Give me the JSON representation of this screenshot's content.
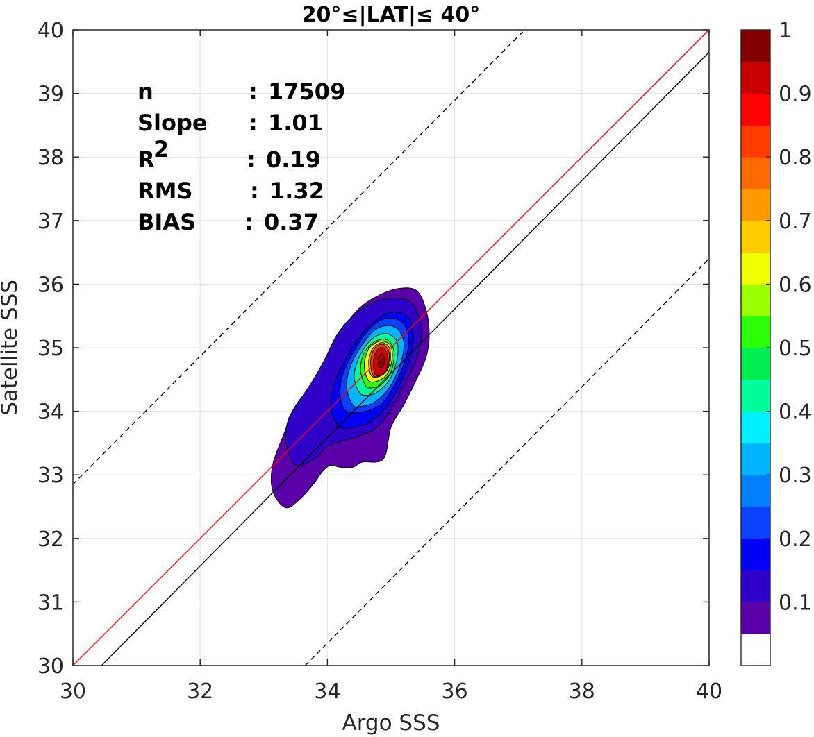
{
  "chart_data": {
    "type": "contour",
    "title": "20°≤|LAT|≤ 40°",
    "xlabel": "Argo SSS",
    "ylabel": "Satellite SSS",
    "xlim": [
      30,
      40
    ],
    "ylim": [
      30,
      40
    ],
    "xticks": [
      "30",
      "32",
      "34",
      "36",
      "38",
      "40"
    ],
    "yticks": [
      "30",
      "31",
      "32",
      "33",
      "34",
      "35",
      "36",
      "37",
      "38",
      "39",
      "40"
    ],
    "grid": true,
    "stats": [
      {
        "label": "n",
        "sep": ":",
        "value": "17509"
      },
      {
        "label": "Slope",
        "sep": ":",
        "value": "1.01"
      },
      {
        "label": "R",
        "sup": "2",
        "sep": ":",
        "value": "0.19"
      },
      {
        "label": "RMS",
        "sep": ":",
        "value": "1.32"
      },
      {
        "label": "BIAS",
        "sep": ":",
        "value": "0.37"
      }
    ],
    "reference_lines": [
      {
        "kind": "one-to-one",
        "color": "#ff0000",
        "style": "solid",
        "x": [
          30,
          40
        ],
        "y": [
          30,
          40
        ]
      },
      {
        "kind": "regression",
        "color": "#000000",
        "style": "solid",
        "x": [
          30.45,
          40
        ],
        "y": [
          30,
          39.65
        ]
      },
      {
        "kind": "upper-bound",
        "color": "#000000",
        "style": "dashed",
        "x": [
          30,
          37.1
        ],
        "y": [
          32.85,
          40
        ]
      },
      {
        "kind": "lower-bound",
        "color": "#000000",
        "style": "dashed",
        "x": [
          33.65,
          40
        ],
        "y": [
          30,
          36.4
        ]
      }
    ],
    "density_contours": [
      {
        "level": 0.05,
        "points": [
          [
            33.37,
            32.48
          ],
          [
            33.2,
            32.62
          ],
          [
            33.12,
            32.85
          ],
          [
            33.15,
            33.2
          ],
          [
            33.32,
            33.65
          ],
          [
            33.45,
            34.0
          ],
          [
            33.62,
            34.25
          ],
          [
            33.85,
            34.5
          ],
          [
            34.05,
            34.9
          ],
          [
            34.25,
            35.3
          ],
          [
            34.5,
            35.62
          ],
          [
            34.8,
            35.82
          ],
          [
            35.12,
            35.93
          ],
          [
            35.4,
            35.9
          ],
          [
            35.55,
            35.6
          ],
          [
            35.6,
            35.2
          ],
          [
            35.55,
            34.85
          ],
          [
            35.4,
            34.5
          ],
          [
            35.2,
            34.1
          ],
          [
            35.0,
            33.75
          ],
          [
            34.88,
            33.25
          ],
          [
            34.55,
            33.2
          ],
          [
            34.4,
            33.12
          ],
          [
            34.2,
            33.12
          ],
          [
            34.05,
            33.15
          ],
          [
            33.92,
            33.05
          ],
          [
            33.8,
            32.88
          ],
          [
            33.6,
            32.65
          ]
        ]
      },
      {
        "level": 0.1,
        "points": [
          [
            33.5,
            33.15
          ],
          [
            33.35,
            33.5
          ],
          [
            33.38,
            33.85
          ],
          [
            33.55,
            34.15
          ],
          [
            33.75,
            34.45
          ],
          [
            33.95,
            34.8
          ],
          [
            34.15,
            35.2
          ],
          [
            34.4,
            35.5
          ],
          [
            34.7,
            35.7
          ],
          [
            35.0,
            35.78
          ],
          [
            35.3,
            35.72
          ],
          [
            35.45,
            35.45
          ],
          [
            35.47,
            35.1
          ],
          [
            35.35,
            34.7
          ],
          [
            35.15,
            34.3
          ],
          [
            34.95,
            33.95
          ],
          [
            34.72,
            33.7
          ],
          [
            34.3,
            33.55
          ],
          [
            34.0,
            33.45
          ],
          [
            33.8,
            33.25
          ]
        ]
      },
      {
        "level": 0.15,
        "points": [
          [
            34.2,
            33.75
          ],
          [
            34.05,
            34.05
          ],
          [
            34.1,
            34.4
          ],
          [
            34.25,
            34.75
          ],
          [
            34.45,
            35.1
          ],
          [
            34.7,
            35.38
          ],
          [
            34.98,
            35.55
          ],
          [
            35.25,
            35.5
          ],
          [
            35.35,
            35.2
          ],
          [
            35.3,
            34.85
          ],
          [
            35.15,
            34.45
          ],
          [
            34.95,
            34.1
          ],
          [
            34.7,
            33.85
          ],
          [
            34.45,
            33.75
          ]
        ]
      },
      {
        "level": 0.2,
        "points": [
          [
            34.3,
            34.0
          ],
          [
            34.2,
            34.25
          ],
          [
            34.25,
            34.6
          ],
          [
            34.42,
            34.95
          ],
          [
            34.62,
            35.25
          ],
          [
            34.88,
            35.45
          ],
          [
            35.15,
            35.42
          ],
          [
            35.28,
            35.15
          ],
          [
            35.22,
            34.8
          ],
          [
            35.05,
            34.4
          ],
          [
            34.85,
            34.12
          ],
          [
            34.6,
            34.0
          ]
        ]
      },
      {
        "level": 0.3,
        "points": [
          [
            34.4,
            34.1
          ],
          [
            34.3,
            34.4
          ],
          [
            34.38,
            34.75
          ],
          [
            34.55,
            35.05
          ],
          [
            34.78,
            35.3
          ],
          [
            35.05,
            35.33
          ],
          [
            35.2,
            35.1
          ],
          [
            35.15,
            34.75
          ],
          [
            34.98,
            34.38
          ],
          [
            34.75,
            34.15
          ],
          [
            34.55,
            34.08
          ]
        ]
      },
      {
        "level": 0.4,
        "points": [
          [
            34.5,
            34.3
          ],
          [
            34.42,
            34.55
          ],
          [
            34.5,
            34.85
          ],
          [
            34.68,
            35.12
          ],
          [
            34.9,
            35.22
          ],
          [
            35.08,
            35.12
          ],
          [
            35.1,
            34.85
          ],
          [
            34.98,
            34.5
          ],
          [
            34.78,
            34.3
          ],
          [
            34.62,
            34.25
          ]
        ]
      },
      {
        "level": 0.5,
        "points": [
          [
            34.6,
            34.4
          ],
          [
            34.52,
            34.65
          ],
          [
            34.58,
            34.92
          ],
          [
            34.75,
            35.1
          ],
          [
            34.95,
            35.12
          ],
          [
            35.05,
            34.92
          ],
          [
            35.0,
            34.62
          ],
          [
            34.85,
            34.42
          ],
          [
            34.7,
            34.37
          ]
        ]
      },
      {
        "level": 0.6,
        "points": [
          [
            34.65,
            34.48
          ],
          [
            34.58,
            34.72
          ],
          [
            34.65,
            34.98
          ],
          [
            34.82,
            35.1
          ],
          [
            34.98,
            35.05
          ],
          [
            35.02,
            34.85
          ],
          [
            34.95,
            34.6
          ],
          [
            34.8,
            34.48
          ]
        ]
      },
      {
        "level": 0.7,
        "points": [
          [
            34.7,
            34.55
          ],
          [
            34.65,
            34.78
          ],
          [
            34.72,
            35.0
          ],
          [
            34.87,
            35.08
          ],
          [
            34.98,
            34.98
          ],
          [
            34.98,
            34.75
          ],
          [
            34.88,
            34.58
          ]
        ]
      },
      {
        "level": 0.8,
        "points": [
          [
            34.72,
            34.56
          ],
          [
            34.68,
            34.8
          ],
          [
            34.75,
            35.0
          ],
          [
            34.88,
            35.05
          ],
          [
            34.97,
            34.92
          ],
          [
            34.95,
            34.7
          ],
          [
            34.85,
            34.57
          ]
        ]
      },
      {
        "level": 0.9,
        "points": [
          [
            34.75,
            34.58
          ],
          [
            34.72,
            34.78
          ],
          [
            34.78,
            34.96
          ],
          [
            34.88,
            35.0
          ],
          [
            34.95,
            34.85
          ],
          [
            34.93,
            34.65
          ],
          [
            34.85,
            34.57
          ]
        ]
      },
      {
        "level": 0.95,
        "points": [
          [
            34.8,
            34.72
          ],
          [
            34.8,
            34.85
          ],
          [
            34.87,
            34.9
          ],
          [
            34.9,
            34.78
          ],
          [
            34.86,
            34.68
          ]
        ]
      }
    ],
    "colorbar": {
      "range": [
        0,
        1
      ],
      "ticks": [
        "0.1",
        "0.2",
        "0.3",
        "0.4",
        "0.5",
        "0.6",
        "0.7",
        "0.8",
        "0.9",
        "1"
      ],
      "levels": [
        {
          "from": 0.0,
          "to": 0.05,
          "color": "#ffffff"
        },
        {
          "from": 0.05,
          "to": 0.1,
          "color": "#5a00a8"
        },
        {
          "from": 0.1,
          "to": 0.15,
          "color": "#2e00c8"
        },
        {
          "from": 0.15,
          "to": 0.2,
          "color": "#0000f5"
        },
        {
          "from": 0.2,
          "to": 0.25,
          "color": "#0b40ff"
        },
        {
          "from": 0.25,
          "to": 0.3,
          "color": "#0080ff"
        },
        {
          "from": 0.3,
          "to": 0.35,
          "color": "#00b4ff"
        },
        {
          "from": 0.35,
          "to": 0.4,
          "color": "#00f0ff"
        },
        {
          "from": 0.4,
          "to": 0.45,
          "color": "#00ff9c"
        },
        {
          "from": 0.45,
          "to": 0.5,
          "color": "#00ef50"
        },
        {
          "from": 0.5,
          "to": 0.55,
          "color": "#2dff0b"
        },
        {
          "from": 0.55,
          "to": 0.6,
          "color": "#9cff00"
        },
        {
          "from": 0.6,
          "to": 0.65,
          "color": "#f0ff00"
        },
        {
          "from": 0.65,
          "to": 0.7,
          "color": "#ffcc00"
        },
        {
          "from": 0.7,
          "to": 0.75,
          "color": "#ff9b00"
        },
        {
          "from": 0.75,
          "to": 0.8,
          "color": "#ff6a00"
        },
        {
          "from": 0.8,
          "to": 0.85,
          "color": "#ff3c00"
        },
        {
          "from": 0.85,
          "to": 0.9,
          "color": "#ff0000"
        },
        {
          "from": 0.9,
          "to": 0.95,
          "color": "#c80000"
        },
        {
          "from": 0.95,
          "to": 1.0,
          "color": "#820000"
        }
      ]
    }
  }
}
